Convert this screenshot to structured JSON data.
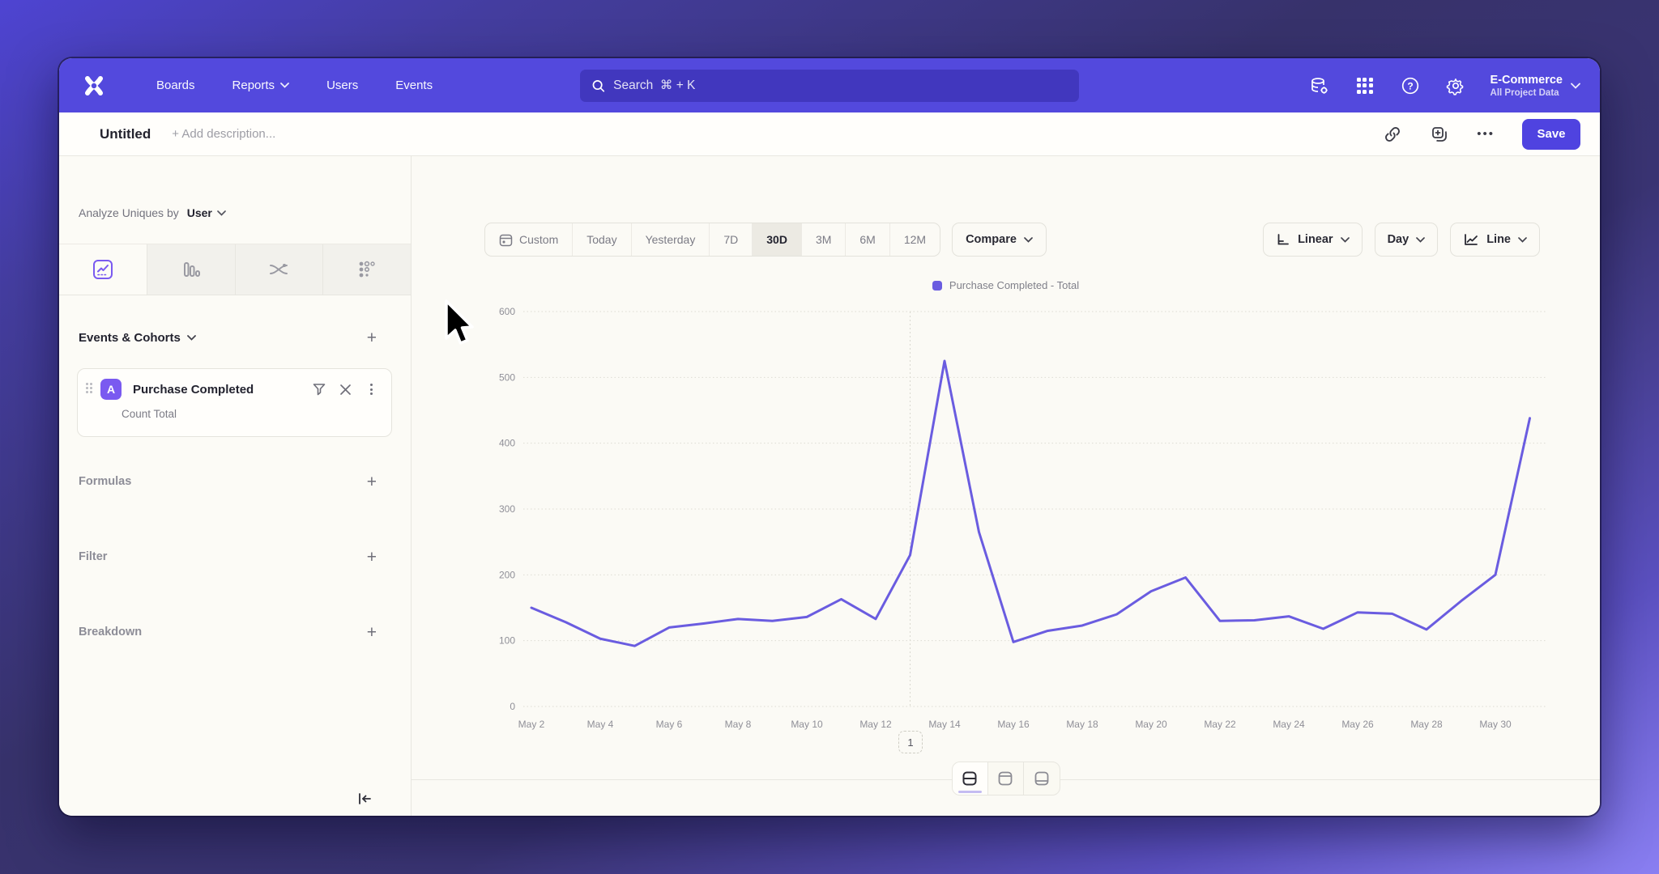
{
  "nav": {
    "items": [
      "Boards",
      "Reports",
      "Users",
      "Events"
    ],
    "search_placeholder": "Search  ⌘ + K",
    "project": {
      "name": "E-Commerce",
      "subtitle": "All Project Data"
    }
  },
  "title_bar": {
    "title": "Untitled",
    "description_placeholder": "+ Add description...",
    "more_label": "•••",
    "save_label": "Save"
  },
  "sidebar": {
    "analyze_label": "Analyze Uniques by",
    "analyze_value": "User",
    "events_header": "Events & Cohorts",
    "event": {
      "badge": "A",
      "name": "Purchase Completed",
      "metric": "Count Total"
    },
    "sections": [
      "Formulas",
      "Filter",
      "Breakdown"
    ]
  },
  "toolbar": {
    "ranges": [
      "Custom",
      "Today",
      "Yesterday",
      "7D",
      "30D",
      "3M",
      "6M",
      "12M"
    ],
    "selected_range": "30D",
    "compare": "Compare",
    "scale": "Linear",
    "interval": "Day",
    "chart_type": "Line"
  },
  "chart_data": {
    "type": "line",
    "title": "",
    "legend_position": "top-center",
    "grid": "dotted-horizontal",
    "ylim": [
      0,
      600
    ],
    "y_ticks": [
      0,
      100,
      200,
      300,
      400,
      500,
      600
    ],
    "x": [
      "May 2",
      "May 3",
      "May 4",
      "May 5",
      "May 6",
      "May 7",
      "May 8",
      "May 9",
      "May 10",
      "May 11",
      "May 12",
      "May 13",
      "May 14",
      "May 15",
      "May 16",
      "May 17",
      "May 18",
      "May 19",
      "May 20",
      "May 21",
      "May 22",
      "May 23",
      "May 24",
      "May 25",
      "May 26",
      "May 27",
      "May 28",
      "May 29",
      "May 30",
      "May 31"
    ],
    "annotation_vline_x": "May 13",
    "series": [
      {
        "name": "Purchase Completed - Total",
        "color": "#6a5ce0",
        "values": [
          150,
          128,
          103,
          92,
          120,
          126,
          133,
          130,
          136,
          163,
          133,
          230,
          525,
          265,
          98,
          115,
          123,
          140,
          175,
          196,
          130,
          131,
          137,
          118,
          143,
          141,
          117,
          160,
          200,
          438
        ]
      }
    ]
  },
  "footer": {
    "page": "1"
  },
  "colors": {
    "accent": "#4f43e0",
    "navbar": "#5349dd",
    "line": "#6a5ce0",
    "grid": "#dddcd3"
  }
}
